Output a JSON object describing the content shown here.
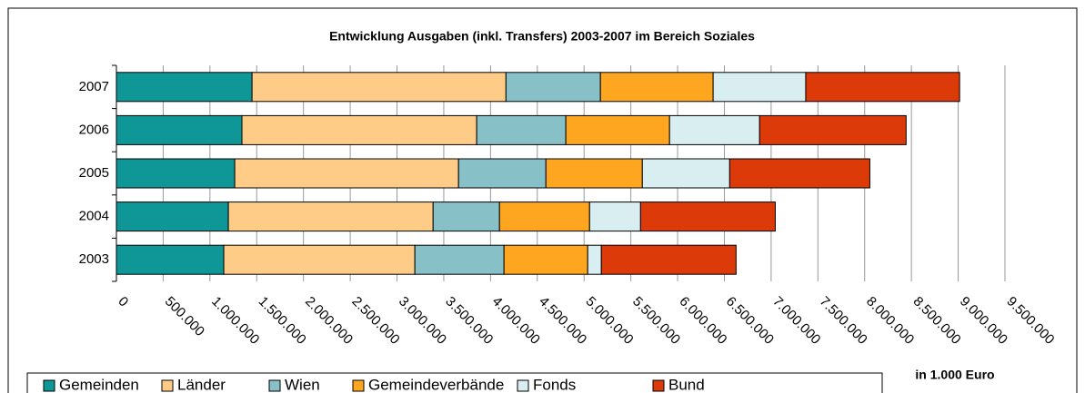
{
  "chart_data": {
    "type": "stacked_barh",
    "title": "Entwicklung Ausgaben (inkl. Transfers) 2003-2007 im Bereich Soziales",
    "x_label": "in 1.000 Euro",
    "categories": [
      "2003",
      "2004",
      "2005",
      "2006",
      "2007"
    ],
    "series": [
      {
        "name": "Gemeinden",
        "color": "#0f9696",
        "values": [
          1148000,
          1197000,
          1265000,
          1342000,
          1450000
        ]
      },
      {
        "name": "Länder",
        "color": "#ffcc88",
        "values": [
          2043000,
          2189000,
          2393000,
          2510000,
          2715000
        ]
      },
      {
        "name": "Wien",
        "color": "#88c0c8",
        "values": [
          953000,
          710000,
          934000,
          953000,
          1010000
        ]
      },
      {
        "name": "Gemeindeverbände",
        "color": "#ffa620",
        "values": [
          895000,
          963000,
          1031000,
          1109000,
          1205000
        ]
      },
      {
        "name": "Fonds",
        "color": "#d8eef0",
        "values": [
          146000,
          545000,
          934000,
          963000,
          990000
        ]
      },
      {
        "name": "Bund",
        "color": "#dd3a0a",
        "values": [
          1440000,
          1440000,
          1498000,
          1566000,
          1645000
        ]
      }
    ],
    "xlim": [
      0,
      9500000
    ],
    "xticks": [
      0,
      {
        "value": 500000,
        "label": "500.000"
      },
      {
        "value": 1000000,
        "label": "1.000.000"
      },
      {
        "value": 1500000,
        "label": "1.500.000"
      },
      {
        "value": 2000000,
        "label": "2.000.000"
      },
      {
        "value": 2500000,
        "label": "2.500.000"
      },
      {
        "value": 3000000,
        "label": "3.000.000"
      },
      {
        "value": 3500000,
        "label": "3.500.000"
      },
      {
        "value": 4000000,
        "label": "4.000.000"
      },
      {
        "value": 4500000,
        "label": "4.500.000"
      },
      {
        "value": 5000000,
        "label": "5.000.000"
      },
      {
        "value": 5500000,
        "label": "5.500.000"
      },
      {
        "value": 6000000,
        "label": "6.000.000"
      },
      {
        "value": 6500000,
        "label": "6.500.000"
      },
      {
        "value": 7000000,
        "label": "7.000.000"
      },
      {
        "value": 7500000,
        "label": "7.500.000"
      },
      {
        "value": 8000000,
        "label": "8.000.000"
      },
      {
        "value": 8500000,
        "label": "8.500.000"
      },
      {
        "value": 9000000,
        "label": "9.000.000"
      },
      {
        "value": 9500000,
        "label": "9.500.000"
      }
    ],
    "grid": true,
    "legend": "bottom"
  }
}
